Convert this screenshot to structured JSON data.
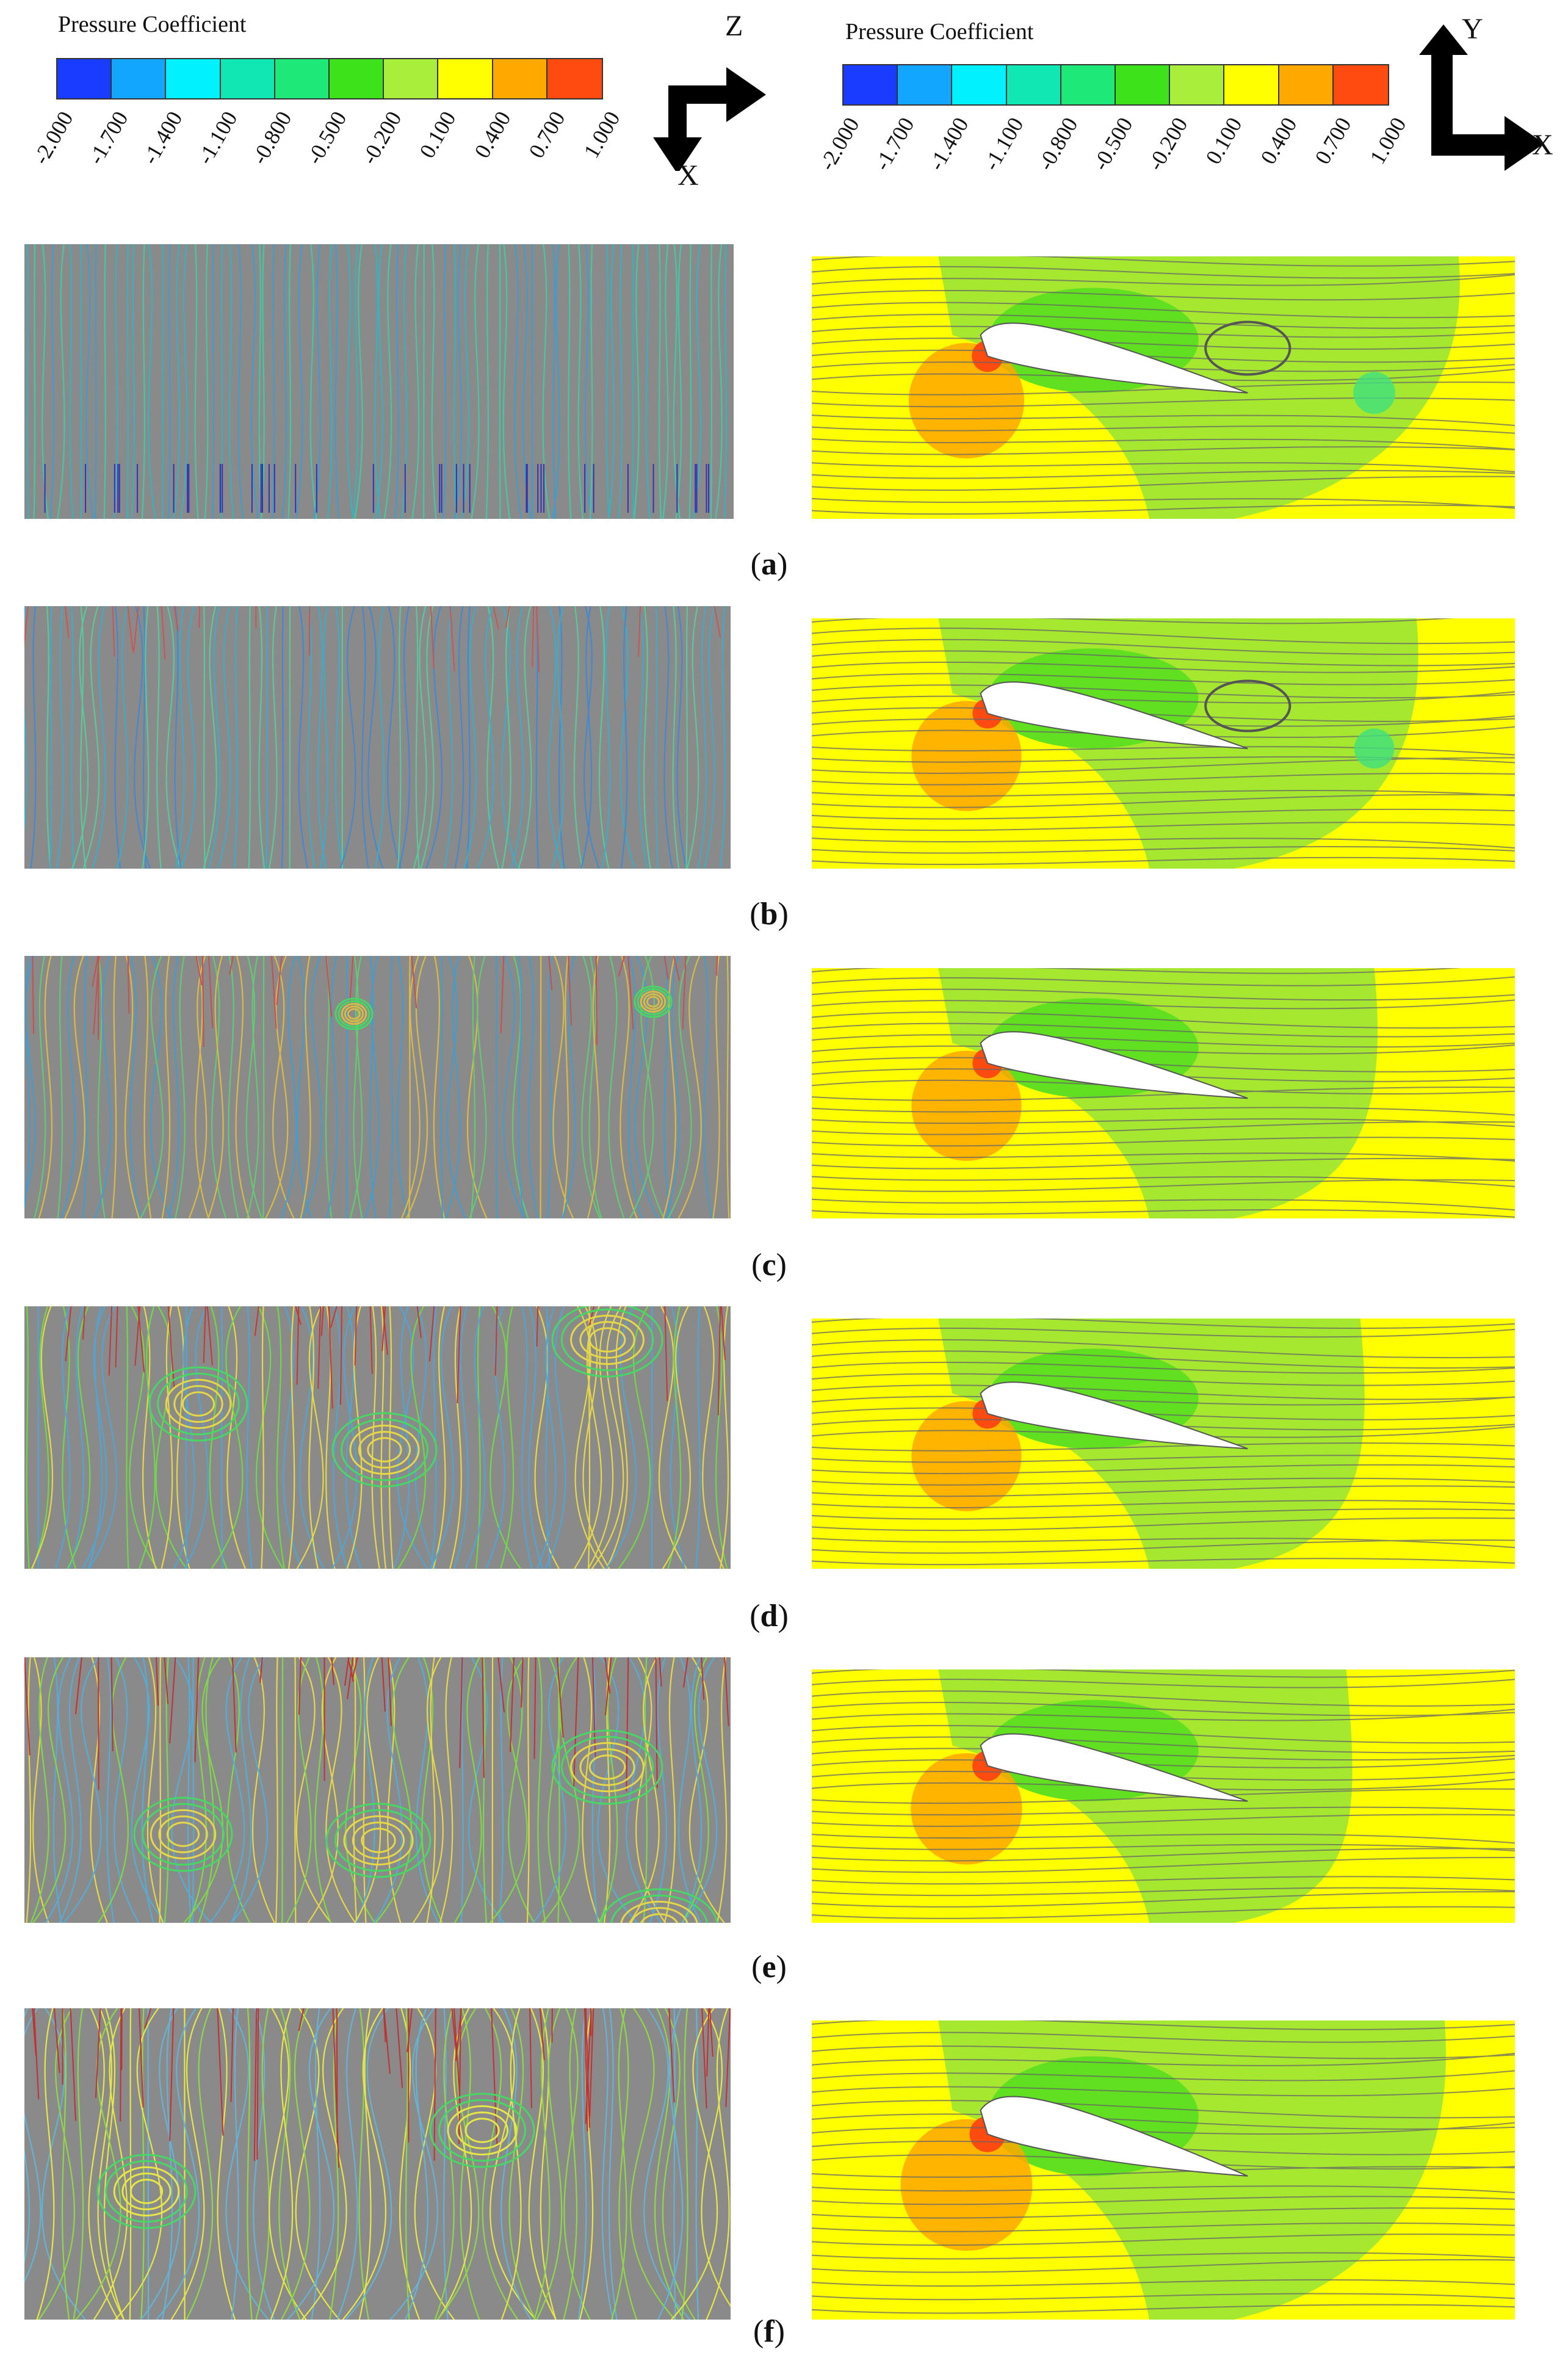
{
  "legend_left": {
    "title": "Pressure Coefficient",
    "ticks": [
      "-2.000",
      "-1.700",
      "-1.400",
      "-1.100",
      "-0.800",
      "-0.500",
      "-0.200",
      "0.100",
      "0.400",
      "0.700",
      "1.000"
    ],
    "colors": [
      "#1a3cff",
      "#12a6ff",
      "#00f2ff",
      "#10e8b4",
      "#1ee878",
      "#3de21a",
      "#a8ee3a",
      "#ffff00",
      "#ffa800",
      "#ff4a10"
    ]
  },
  "legend_right": {
    "title": "Pressure Coefficient",
    "ticks": [
      "-2.000",
      "-1.700",
      "-1.400",
      "-1.100",
      "-0.800",
      "-0.500",
      "-0.200",
      "0.100",
      "0.400",
      "0.700",
      "1.000"
    ],
    "colors": [
      "#1a3cff",
      "#12a6ff",
      "#00f2ff",
      "#10e8b4",
      "#1ee878",
      "#3de21a",
      "#a8ee3a",
      "#ffff00",
      "#ffa800",
      "#ff4a10"
    ]
  },
  "axes_left": {
    "up": "Z",
    "down": "X"
  },
  "axes_right": {
    "up": "Y",
    "right": "X"
  },
  "panels": [
    {
      "label": "a"
    },
    {
      "label": "b"
    },
    {
      "label": "c"
    },
    {
      "label": "d"
    },
    {
      "label": "e"
    },
    {
      "label": "f"
    }
  ]
}
